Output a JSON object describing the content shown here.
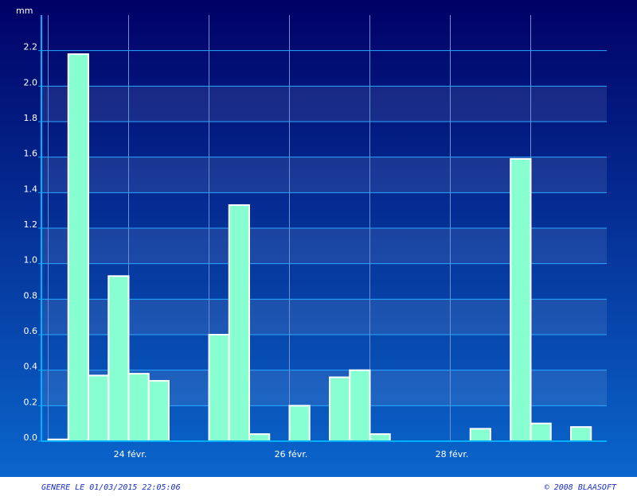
{
  "chart_data": {
    "type": "bar",
    "y_label": "mm",
    "categories": [
      null,
      null,
      null,
      null,
      "24 févr.",
      null,
      null,
      null,
      null,
      null,
      null,
      null,
      "26 févr.",
      null,
      null,
      null,
      null,
      null,
      null,
      null,
      "28 févr.",
      null,
      null,
      null,
      null,
      null,
      null
    ],
    "values": [
      0.01,
      2.18,
      0.37,
      0.93,
      0.38,
      0.34,
      0,
      0,
      0.6,
      1.33,
      0.04,
      0,
      0.2,
      0,
      0.36,
      0.4,
      0.04,
      0,
      0,
      0,
      0,
      0.07,
      0,
      1.59,
      0.1,
      0,
      0.08
    ],
    "color": "#88ffd0",
    "ylim": [
      0,
      2.4
    ],
    "yticks": [
      {
        "value": 0,
        "label": "0.0"
      },
      0.2,
      0.4,
      0.6,
      0.8,
      {
        "value": 1,
        "label": "1.0"
      },
      1.2,
      1.4,
      1.6,
      1.8,
      {
        "value": 2,
        "label": "2.0"
      },
      2.2
    ],
    "grid": true
  },
  "footer": {
    "generated": "GENERE LE 01/03/2015 22:05:06",
    "copyright": "© 2008 BLAASOFT"
  }
}
